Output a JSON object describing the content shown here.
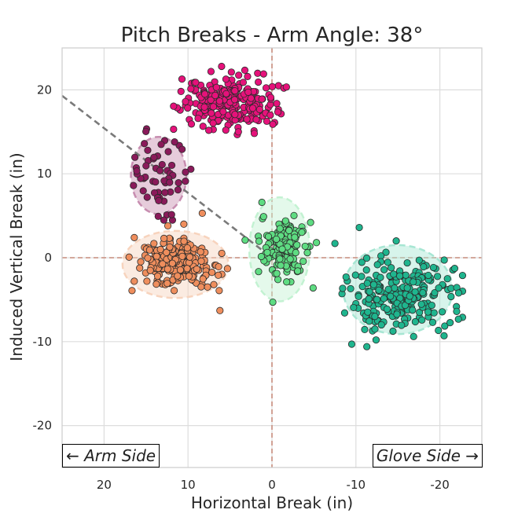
{
  "chart_data": {
    "type": "scatter",
    "title": "Pitch Breaks - Arm Angle: 38°",
    "xlabel": "Horizontal Break (in)",
    "ylabel": "Induced Vertical Break (in)",
    "xlim": [
      25,
      -25
    ],
    "ylim": [
      -25,
      25
    ],
    "x_ticks": [
      20,
      10,
      0,
      -10,
      -20
    ],
    "y_ticks": [
      20,
      10,
      0,
      -10,
      -20
    ],
    "grid": true,
    "reference_lines": {
      "x": 0,
      "y": 0,
      "color": "#c98e7e",
      "style": "dashed"
    },
    "arm_angle_line": {
      "angle_deg": 38,
      "from": [
        25,
        19.3
      ],
      "to": [
        0,
        0
      ],
      "color": "#7a7a7a",
      "style": "dashed"
    },
    "annotations": {
      "left": "← Arm Side",
      "right": "Glove Side →"
    },
    "series": [
      {
        "color": "#e5127a",
        "center": [
          5,
          18.5
        ],
        "spread": [
          2.8,
          1.6
        ],
        "n": 240,
        "ellipse": null,
        "points": [
          [
            6,
            22.8
          ],
          [
            1,
            21.9
          ],
          [
            8,
            19.5
          ],
          [
            5.5,
            15.2
          ],
          [
            0.2,
            17.0
          ],
          [
            -0.1,
            15.9
          ],
          [
            10.3,
            18.6
          ],
          [
            8.8,
            16.6
          ],
          [
            2.5,
            19.0
          ],
          [
            4,
            15
          ]
        ]
      },
      {
        "color": "#8a1a5a",
        "center": [
          13.5,
          10
        ],
        "spread": [
          1.6,
          2.3
        ],
        "n": 50,
        "ellipse": {
          "cx": 13.5,
          "cy": 9.8,
          "rx": 3.3,
          "ry": 4.6,
          "fill": "#c78db0"
        },
        "points": [
          [
            15.2,
            13.6
          ],
          [
            11.6,
            13.8
          ],
          [
            13.5,
            6.8
          ],
          [
            10.3,
            10.2
          ],
          [
            16.5,
            8.6
          ],
          [
            14.8,
            12.8
          ]
        ]
      },
      {
        "color": "#ef8e5d",
        "center": [
          11.5,
          -0.8
        ],
        "spread": [
          2.3,
          1.3
        ],
        "n": 230,
        "ellipse": {
          "cx": 11.5,
          "cy": -0.8,
          "rx": 6.3,
          "ry": 4.0,
          "fill": "#f7d3bd"
        },
        "points": [
          [
            16.4,
            2.4
          ],
          [
            16.4,
            -2.8
          ],
          [
            6.2,
            -6.3
          ],
          [
            8.3,
            5.3
          ],
          [
            5.3,
            -1.3
          ],
          [
            10.5,
            4.0
          ],
          [
            12.4,
            3.8
          ]
        ]
      },
      {
        "color": "#5edc82",
        "center": [
          -1.5,
          1.2
        ],
        "spread": [
          1.3,
          1.7
        ],
        "n": 160,
        "ellipse": {
          "cx": -0.9,
          "cy": 1.0,
          "rx": 3.6,
          "ry": 6.2,
          "fill": "#c3f2d2"
        },
        "points": [
          [
            1.2,
            6.6
          ],
          [
            -4.6,
            4.2
          ],
          [
            -5.3,
            1.8
          ],
          [
            -0.1,
            -5.3
          ],
          [
            -4.9,
            -3.6
          ],
          [
            3.2,
            2.1
          ],
          [
            1.0,
            4.9
          ]
        ]
      },
      {
        "color": "#1fb58e",
        "center": [
          -15.5,
          -4.5
        ],
        "spread": [
          3.0,
          2.2
        ],
        "n": 240,
        "ellipse": {
          "cx": -15.0,
          "cy": -3.8,
          "rx": 6.5,
          "ry": 5.3,
          "fill": "#a7e6d3"
        },
        "points": [
          [
            -10.4,
            3.6
          ],
          [
            -22.0,
            -6.4
          ],
          [
            -20.5,
            -9.3
          ],
          [
            -9.5,
            -10.3
          ],
          [
            -11.3,
            -10.6
          ],
          [
            -20.9,
            -2.5
          ],
          [
            -14.8,
            2.0
          ],
          [
            -7.5,
            1.7
          ],
          [
            -12.4,
            -9.8
          ]
        ]
      }
    ]
  }
}
